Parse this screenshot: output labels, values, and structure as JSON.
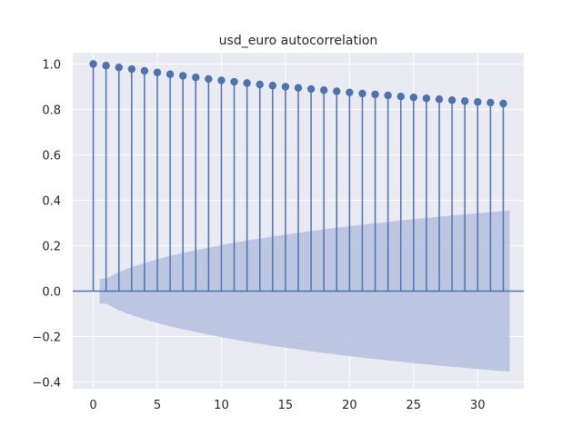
{
  "chart_data": {
    "type": "stem",
    "title": "usd_euro autocorrelation",
    "xlabel": "",
    "ylabel": "",
    "xlim": [
      -1.6,
      33.6
    ],
    "ylim": [
      -0.43,
      1.05
    ],
    "x_ticks": [
      0,
      5,
      10,
      15,
      20,
      25,
      30
    ],
    "y_ticks": [
      -0.4,
      -0.2,
      0.0,
      0.2,
      0.4,
      0.6,
      0.8,
      1.0
    ],
    "y_tick_labels": [
      "−0.4",
      "−0.2",
      "0.0",
      "0.2",
      "0.4",
      "0.6",
      "0.8",
      "1.0"
    ],
    "grid": true,
    "lags": [
      0,
      1,
      2,
      3,
      4,
      5,
      6,
      7,
      8,
      9,
      10,
      11,
      12,
      13,
      14,
      15,
      16,
      17,
      18,
      19,
      20,
      21,
      22,
      23,
      24,
      25,
      26,
      27,
      28,
      29,
      30,
      31,
      32
    ],
    "acf": [
      1.0,
      0.993,
      0.985,
      0.978,
      0.97,
      0.963,
      0.955,
      0.948,
      0.941,
      0.934,
      0.928,
      0.922,
      0.916,
      0.91,
      0.905,
      0.9,
      0.895,
      0.89,
      0.885,
      0.88,
      0.875,
      0.87,
      0.866,
      0.862,
      0.857,
      0.853,
      0.849,
      0.845,
      0.841,
      0.837,
      0.833,
      0.83,
      0.826
    ],
    "confidence_band": {
      "x": [
        0.5,
        1,
        2,
        3,
        4,
        5,
        6,
        7,
        8,
        9,
        10,
        11,
        12,
        13,
        14,
        15,
        16,
        17,
        18,
        19,
        20,
        21,
        22,
        23,
        24,
        25,
        26,
        27,
        28,
        29,
        30,
        31,
        32,
        32.5
      ],
      "upper": [
        0.055,
        0.055,
        0.084,
        0.106,
        0.124,
        0.14,
        0.155,
        0.168,
        0.18,
        0.192,
        0.203,
        0.213,
        0.223,
        0.232,
        0.241,
        0.249,
        0.257,
        0.265,
        0.272,
        0.279,
        0.286,
        0.293,
        0.299,
        0.305,
        0.311,
        0.317,
        0.322,
        0.328,
        0.333,
        0.338,
        0.343,
        0.348,
        0.352,
        0.355
      ]
    },
    "colors": {
      "stem": "#4c72b0",
      "band": "#b4c0de",
      "axes_bg": "#eaeaf2",
      "grid": "#ffffff"
    }
  }
}
